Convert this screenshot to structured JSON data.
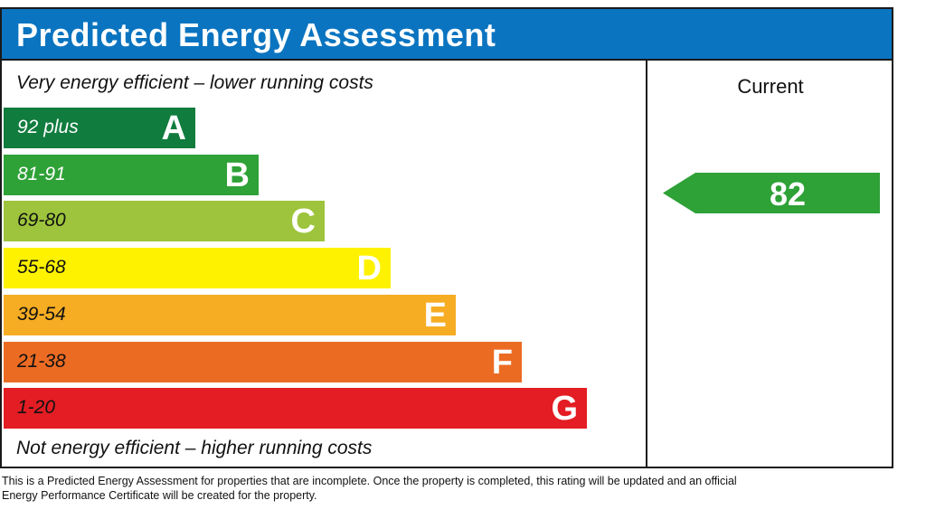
{
  "title": "Predicted Energy Assessment",
  "top_note": "Very energy efficient – lower running costs",
  "bottom_note": "Not energy efficient – higher running costs",
  "current_label": "Current",
  "footnote": "This is a Predicted Energy Assessment for properties that are incomplete. Once the property is completed, this rating will be updated and an official Energy Performance Certificate will be created for the property.",
  "colors": {
    "title_bar": "#0a74c0",
    "border": "#1a1a1a"
  },
  "chart_data": {
    "type": "bar",
    "categories": [
      "A",
      "B",
      "C",
      "D",
      "E",
      "F",
      "G"
    ],
    "bands": [
      {
        "letter": "A",
        "range": "92 plus",
        "color": "#107c3e",
        "text_color": "#ffffff"
      },
      {
        "letter": "B",
        "range": "81-91",
        "color": "#2ea137",
        "text_color": "#ffffff"
      },
      {
        "letter": "C",
        "range": "69-80",
        "color": "#9dc43c",
        "text_color": "#111111"
      },
      {
        "letter": "D",
        "range": "55-68",
        "color": "#fff200",
        "text_color": "#111111"
      },
      {
        "letter": "E",
        "range": "39-54",
        "color": "#f6ad23",
        "text_color": "#111111"
      },
      {
        "letter": "F",
        "range": "21-38",
        "color": "#ec6b23",
        "text_color": "#111111"
      },
      {
        "letter": "G",
        "range": "1-20",
        "color": "#e31d23",
        "text_color": "#111111"
      }
    ],
    "current": {
      "value": "82",
      "band": "B",
      "color": "#2ea137"
    }
  }
}
